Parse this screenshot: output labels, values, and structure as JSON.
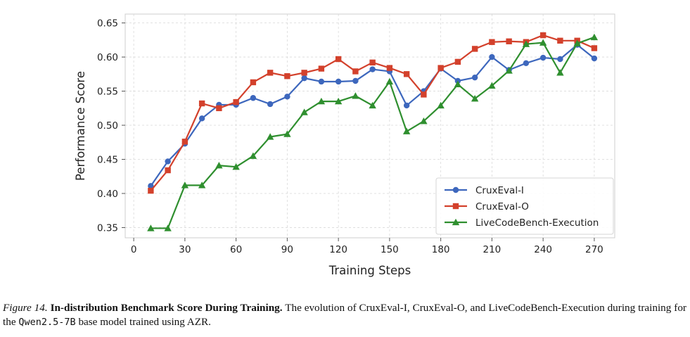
{
  "chart_data": {
    "type": "line",
    "title": "",
    "xlabel": "Training Steps",
    "ylabel": "Performance Score",
    "xlim": [
      -5,
      282
    ],
    "ylim": [
      0.335,
      0.663
    ],
    "xticks": [
      0,
      30,
      60,
      90,
      120,
      150,
      180,
      210,
      240,
      270
    ],
    "yticks": [
      0.35,
      0.4,
      0.45,
      0.5,
      0.55,
      0.6,
      0.65
    ],
    "ytick_labels": [
      "0.35",
      "0.40",
      "0.45",
      "0.50",
      "0.55",
      "0.60",
      "0.65"
    ],
    "grid": true,
    "legend_position": "bottom-right",
    "x": [
      10,
      20,
      30,
      40,
      50,
      60,
      70,
      80,
      90,
      100,
      110,
      120,
      130,
      140,
      150,
      160,
      170,
      180,
      190,
      200,
      210,
      220,
      230,
      240,
      250,
      260,
      270
    ],
    "series": [
      {
        "name": "CruxEval-I",
        "color": "#3d67bd",
        "marker": "circle",
        "values": [
          0.411,
          0.447,
          0.473,
          0.51,
          0.53,
          0.53,
          0.54,
          0.531,
          0.542,
          0.569,
          0.564,
          0.564,
          0.565,
          0.582,
          0.579,
          0.529,
          0.55,
          0.583,
          0.565,
          0.57,
          0.6,
          0.581,
          0.591,
          0.599,
          0.597,
          0.618,
          0.598
        ]
      },
      {
        "name": "CruxEval-O",
        "color": "#d3412c",
        "marker": "square",
        "values": [
          0.404,
          0.434,
          0.476,
          0.532,
          0.525,
          0.534,
          0.563,
          0.577,
          0.572,
          0.577,
          0.583,
          0.597,
          0.579,
          0.592,
          0.584,
          0.575,
          0.545,
          0.584,
          0.593,
          0.612,
          0.622,
          0.623,
          0.622,
          0.632,
          0.624,
          0.624,
          0.613
        ]
      },
      {
        "name": "LiveCodeBench-Execution",
        "color": "#2f8f2f",
        "marker": "triangle",
        "values": [
          0.349,
          0.349,
          0.412,
          0.412,
          0.441,
          0.439,
          0.455,
          0.483,
          0.487,
          0.519,
          0.535,
          0.535,
          0.543,
          0.529,
          0.564,
          0.491,
          0.506,
          0.529,
          0.56,
          0.539,
          0.558,
          0.58,
          0.619,
          0.621,
          0.577,
          0.62,
          0.629
        ]
      }
    ]
  },
  "caption": {
    "figure_label": "Figure 14.",
    "title": "In-distribution Benchmark Score During Training.",
    "text_before_model": "The evolution of CruxEval-I, CruxEval-O, and LiveCodeBench-Execution during training for the",
    "model_name": "Qwen2.5-7B",
    "text_after_model": "base model trained using AZR."
  }
}
